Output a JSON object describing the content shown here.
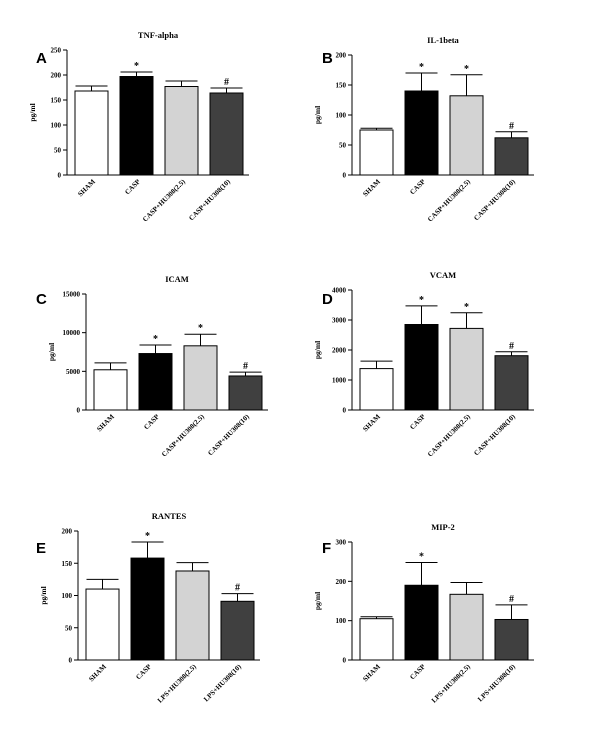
{
  "chart_data": [
    {
      "type": "bar",
      "panel": "A",
      "title": "TNF-alpha",
      "xlabel": "",
      "ylabel": "pg/ml",
      "ylim": [
        0,
        250
      ],
      "yticks": [
        0,
        50,
        100,
        150,
        200,
        250
      ],
      "categories": [
        "SHAM",
        "CASP",
        "CASP+HU308(2.5)",
        "CASP+HU308(10)"
      ],
      "values": [
        168,
        197,
        177,
        164
      ],
      "errors": [
        10,
        9,
        11,
        10
      ],
      "colors": [
        "#ffffff",
        "#000000",
        "#d3d3d3",
        "#404040"
      ],
      "annotations": [
        "",
        "*",
        "",
        "#"
      ]
    },
    {
      "type": "bar",
      "panel": "B",
      "title": "IL-1beta",
      "xlabel": "",
      "ylabel": "pg/ml",
      "ylim": [
        0,
        200
      ],
      "yticks": [
        0,
        50,
        100,
        150,
        200
      ],
      "categories": [
        "SHAM",
        "CASP",
        "CASP+HU308(2.5)",
        "CASP+HU308(10)"
      ],
      "values": [
        75,
        140,
        132,
        62
      ],
      "errors": [
        3,
        30,
        35,
        10
      ],
      "colors": [
        "#ffffff",
        "#000000",
        "#d3d3d3",
        "#404040"
      ],
      "annotations": [
        "",
        "*",
        "*",
        "#"
      ]
    },
    {
      "type": "bar",
      "panel": "C",
      "title": "ICAM",
      "xlabel": "",
      "ylabel": "pg/ml",
      "ylim": [
        0,
        15000
      ],
      "yticks": [
        0,
        5000,
        10000,
        15000
      ],
      "categories": [
        "SHAM",
        "CASP",
        "CASP+HU308(2.5)",
        "CASP+HU308(10)"
      ],
      "values": [
        5200,
        7300,
        8300,
        4400
      ],
      "errors": [
        900,
        1100,
        1500,
        500
      ],
      "colors": [
        "#ffffff",
        "#000000",
        "#d3d3d3",
        "#404040"
      ],
      "annotations": [
        "",
        "*",
        "*",
        "#"
      ]
    },
    {
      "type": "bar",
      "panel": "D",
      "title": "VCAM",
      "xlabel": "",
      "ylabel": "pg/ml",
      "ylim": [
        0,
        4000
      ],
      "yticks": [
        0,
        1000,
        2000,
        3000,
        4000
      ],
      "categories": [
        "SHAM",
        "CASP",
        "CASP+HU308(2.5)",
        "CASP+HU308(10)"
      ],
      "values": [
        1380,
        2850,
        2720,
        1810
      ],
      "errors": [
        250,
        620,
        520,
        130
      ],
      "colors": [
        "#ffffff",
        "#000000",
        "#d3d3d3",
        "#404040"
      ],
      "annotations": [
        "",
        "*",
        "*",
        "#"
      ]
    },
    {
      "type": "bar",
      "panel": "E",
      "title": "RANTES",
      "xlabel": "",
      "ylabel": "pg/ml",
      "ylim": [
        0,
        200
      ],
      "yticks": [
        0,
        50,
        100,
        150,
        200
      ],
      "categories": [
        "SHAM",
        "CASP",
        "LPS+HU308(2.5)",
        "LPS+HU308(10)"
      ],
      "values": [
        110,
        158,
        138,
        91
      ],
      "errors": [
        15,
        25,
        13,
        12
      ],
      "colors": [
        "#ffffff",
        "#000000",
        "#d3d3d3",
        "#404040"
      ],
      "annotations": [
        "",
        "*",
        "",
        "#"
      ]
    },
    {
      "type": "bar",
      "panel": "F",
      "title": "MIP-2",
      "xlabel": "",
      "ylabel": "pg/ml",
      "ylim": [
        0,
        300
      ],
      "yticks": [
        0,
        100,
        200,
        300
      ],
      "categories": [
        "SHAM",
        "CASP",
        "LPS+HU308(2.5)",
        "LPS+HU308(10)"
      ],
      "values": [
        105,
        190,
        167,
        103
      ],
      "errors": [
        5,
        58,
        30,
        37
      ],
      "colors": [
        "#ffffff",
        "#000000",
        "#d3d3d3",
        "#404040"
      ],
      "annotations": [
        "",
        "*",
        "",
        "#"
      ]
    }
  ]
}
